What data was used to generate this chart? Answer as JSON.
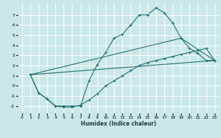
{
  "bg_color": "#cbe8e8",
  "grid_color": "#ffffff",
  "line_color": "#1a6b6b",
  "xlabel": "Humidex (Indice chaleur)",
  "xlim": [
    -0.5,
    23.5
  ],
  "ylim": [
    -2.7,
    8.2
  ],
  "yticks": [
    -2,
    -1,
    0,
    1,
    2,
    3,
    4,
    5,
    6,
    7
  ],
  "xticks": [
    0,
    1,
    2,
    3,
    4,
    5,
    6,
    7,
    8,
    9,
    10,
    11,
    12,
    13,
    14,
    15,
    16,
    17,
    18,
    19,
    20,
    21,
    22,
    23
  ],
  "line1_x": [
    1,
    2,
    3,
    4,
    5,
    6,
    7,
    8,
    9,
    10,
    11,
    12,
    13,
    14,
    15,
    16,
    17,
    18,
    19,
    23
  ],
  "line1_y": [
    1.1,
    -0.7,
    -1.3,
    -2.0,
    -2.0,
    -2.0,
    -2.0,
    0.5,
    2.1,
    3.3,
    4.7,
    5.1,
    6.0,
    7.0,
    7.0,
    7.7,
    7.2,
    6.2,
    4.7,
    2.5
  ],
  "line2_x": [
    1,
    19,
    20,
    21,
    22,
    23
  ],
  "line2_y": [
    1.1,
    4.7,
    3.7,
    3.2,
    2.5,
    2.5
  ],
  "line3_x": [
    1,
    2,
    3,
    4,
    5,
    6,
    7,
    8,
    9,
    10,
    11,
    12,
    13,
    14,
    15,
    16,
    17,
    18,
    19,
    20,
    21,
    22,
    23
  ],
  "line3_y": [
    1.1,
    -0.7,
    -1.3,
    -2.0,
    -2.1,
    -2.1,
    -1.9,
    -1.4,
    -0.8,
    0.0,
    0.5,
    1.0,
    1.5,
    2.0,
    2.3,
    2.5,
    2.7,
    2.9,
    3.1,
    3.3,
    3.5,
    3.7,
    2.5
  ],
  "line4_x": [
    1,
    23
  ],
  "line4_y": [
    1.1,
    2.5
  ]
}
